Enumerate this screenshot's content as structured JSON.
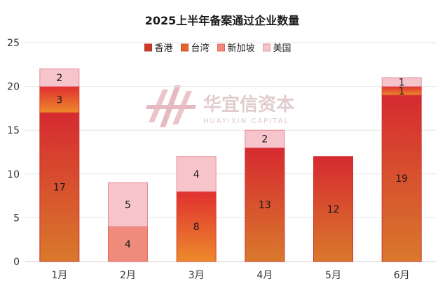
{
  "chart_data": {
    "type": "bar",
    "stacked": true,
    "title": "2025上半年备案通过企业数量",
    "categories": [
      "1月",
      "2月",
      "3月",
      "4月",
      "5月",
      "6月"
    ],
    "ylim": [
      0,
      25
    ],
    "yticks": [
      0,
      5,
      10,
      15,
      20,
      25
    ],
    "grid": true,
    "legend_position": "top-center",
    "series": [
      {
        "name": "香港",
        "values": [
          17,
          0,
          0,
          13,
          12,
          19
        ],
        "color": "#d9442e",
        "color_light": "#d5782e",
        "labels": [
          "17",
          "",
          "",
          "13",
          "12",
          "19"
        ]
      },
      {
        "name": "台湾",
        "values": [
          3,
          0,
          8,
          0,
          0,
          1
        ],
        "color": "#e0422f",
        "color_light": "#e77c2c",
        "labels": [
          "3",
          "",
          "8",
          "",
          "",
          "1"
        ]
      },
      {
        "name": "新加坡",
        "values": [
          0,
          4,
          0,
          0,
          0,
          0
        ],
        "color": "#ee8b7b",
        "color_light": "#ee8b7b",
        "labels": [
          "",
          "4",
          "",
          "",
          "",
          ""
        ]
      },
      {
        "name": "美国",
        "values": [
          2,
          5,
          4,
          2,
          0,
          1
        ],
        "color": "#f6c5cb",
        "color_light": "#f6c5cb",
        "labels": [
          "2",
          "5",
          "4",
          "2",
          "",
          "1"
        ]
      }
    ]
  },
  "watermark": {
    "name": "华宜信资本",
    "sub": "HUAYIXIN CAPITAL"
  }
}
